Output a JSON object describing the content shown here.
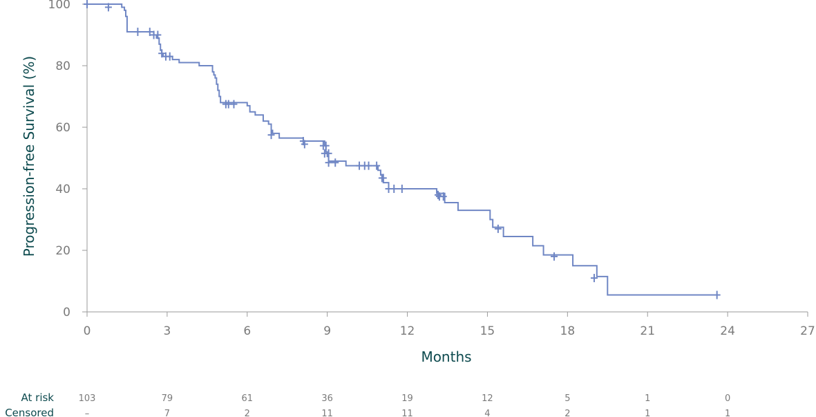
{
  "chart_data": {
    "type": "line",
    "xlabel": "Months",
    "ylabel": "Progression-free Survival (%)",
    "xlim": [
      0,
      27
    ],
    "ylim": [
      0,
      100
    ],
    "xticks": [
      0,
      3,
      6,
      9,
      12,
      15,
      18,
      21,
      24,
      27
    ],
    "yticks": [
      0,
      20,
      40,
      60,
      80,
      100
    ],
    "colors": {
      "curve": "#6f86c4",
      "text": "#0d4a4e",
      "ticks": "#7a7a7a",
      "axis": "#9a9a9a"
    },
    "series": [
      {
        "steps": [
          [
            0,
            100
          ],
          [
            1.3,
            99
          ],
          [
            1.4,
            98
          ],
          [
            1.45,
            96
          ],
          [
            1.5,
            93
          ],
          [
            1.5,
            91
          ],
          [
            2.5,
            90
          ],
          [
            2.6,
            89
          ],
          [
            2.7,
            87
          ],
          [
            2.75,
            85
          ],
          [
            2.8,
            84
          ],
          [
            2.85,
            83
          ],
          [
            3.2,
            82
          ],
          [
            3.45,
            81
          ],
          [
            4.2,
            80
          ],
          [
            4.7,
            78
          ],
          [
            4.75,
            77
          ],
          [
            4.8,
            76
          ],
          [
            4.85,
            74
          ],
          [
            4.9,
            72
          ],
          [
            4.95,
            70
          ],
          [
            5.0,
            68
          ],
          [
            6.0,
            67
          ],
          [
            6.1,
            65
          ],
          [
            6.3,
            64
          ],
          [
            6.6,
            62
          ],
          [
            6.8,
            61
          ],
          [
            6.9,
            59
          ],
          [
            6.95,
            58
          ],
          [
            7.2,
            56.5
          ],
          [
            8.1,
            55.5
          ],
          [
            8.9,
            54
          ],
          [
            8.95,
            52
          ],
          [
            9.0,
            50.5
          ],
          [
            9.05,
            49
          ],
          [
            9.7,
            47.5
          ],
          [
            10.9,
            46
          ],
          [
            11.0,
            44.5
          ],
          [
            11.05,
            43.5
          ],
          [
            11.1,
            42
          ],
          [
            11.3,
            40
          ],
          [
            13.1,
            38.5
          ],
          [
            13.4,
            35.5
          ],
          [
            13.9,
            33
          ],
          [
            15.1,
            30
          ],
          [
            15.2,
            27.5
          ],
          [
            15.6,
            24.5
          ],
          [
            16.7,
            21.5
          ],
          [
            17.1,
            18.5
          ],
          [
            18.2,
            15
          ],
          [
            19.1,
            11.5
          ],
          [
            19.5,
            5.5
          ],
          [
            23.6,
            5.5
          ]
        ],
        "censored": [
          [
            0,
            100
          ],
          [
            0.8,
            99
          ],
          [
            1.9,
            91
          ],
          [
            2.35,
            91
          ],
          [
            2.5,
            90
          ],
          [
            2.65,
            90
          ],
          [
            2.8,
            84
          ],
          [
            2.95,
            83
          ],
          [
            3.1,
            83
          ],
          [
            5.2,
            67.5
          ],
          [
            5.3,
            67.5
          ],
          [
            5.5,
            67.5
          ],
          [
            6.9,
            57.5
          ],
          [
            8.1,
            55.5
          ],
          [
            8.15,
            54.5
          ],
          [
            8.85,
            54
          ],
          [
            8.95,
            54
          ],
          [
            8.9,
            51.5
          ],
          [
            9.05,
            51.5
          ],
          [
            9.05,
            48.5
          ],
          [
            9.3,
            48.5
          ],
          [
            10.2,
            47.5
          ],
          [
            10.4,
            47.5
          ],
          [
            10.55,
            47.5
          ],
          [
            10.85,
            47.5
          ],
          [
            11.05,
            43.5
          ],
          [
            11.1,
            43.5
          ],
          [
            11.3,
            40
          ],
          [
            11.5,
            40
          ],
          [
            11.8,
            40
          ],
          [
            13.15,
            38
          ],
          [
            13.2,
            37.5
          ],
          [
            13.35,
            37.5
          ],
          [
            15.4,
            27
          ],
          [
            17.5,
            18
          ],
          [
            19.0,
            11
          ],
          [
            23.6,
            5.5
          ]
        ]
      }
    ],
    "risk_table": {
      "rows": [
        {
          "label": "At risk",
          "values": [
            "103",
            "79",
            "61",
            "36",
            "19",
            "12",
            "5",
            "1",
            "0"
          ]
        },
        {
          "label": "Censored",
          "values": [
            "–",
            "7",
            "2",
            "11",
            "11",
            "4",
            "2",
            "1",
            "1"
          ]
        }
      ],
      "times": [
        0,
        3,
        6,
        9,
        12,
        15,
        18,
        21,
        24
      ]
    }
  }
}
